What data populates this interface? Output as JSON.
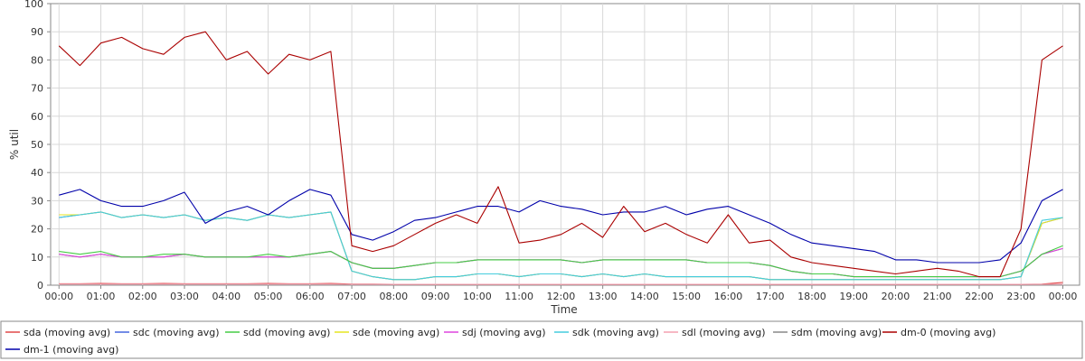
{
  "chart_data": {
    "type": "line",
    "xlabel": "Time",
    "ylabel": "% util",
    "ylim": [
      0,
      100
    ],
    "yticks": [
      0,
      10,
      20,
      30,
      40,
      50,
      60,
      70,
      80,
      90,
      100
    ],
    "xlim": [
      -0.2,
      24.4
    ],
    "xticks": [
      {
        "value": 0,
        "label": "00:00"
      },
      {
        "value": 1,
        "label": "01:00"
      },
      {
        "value": 2,
        "label": "02:00"
      },
      {
        "value": 3,
        "label": "03:00"
      },
      {
        "value": 4,
        "label": "04:00"
      },
      {
        "value": 5,
        "label": "05:00"
      },
      {
        "value": 6,
        "label": "06:00"
      },
      {
        "value": 7,
        "label": "07:00"
      },
      {
        "value": 8,
        "label": "08:00"
      },
      {
        "value": 9,
        "label": "09:00"
      },
      {
        "value": 10,
        "label": "10:00"
      },
      {
        "value": 11,
        "label": "11:00"
      },
      {
        "value": 12,
        "label": "12:00"
      },
      {
        "value": 13,
        "label": "13:00"
      },
      {
        "value": 14,
        "label": "14:00"
      },
      {
        "value": 15,
        "label": "15:00"
      },
      {
        "value": 16,
        "label": "16:00"
      },
      {
        "value": 17,
        "label": "17:00"
      },
      {
        "value": 18,
        "label": "18:00"
      },
      {
        "value": 19,
        "label": "19:00"
      },
      {
        "value": 20,
        "label": "20:00"
      },
      {
        "value": 21,
        "label": "21:00"
      },
      {
        "value": 22,
        "label": "22:00"
      },
      {
        "value": 23,
        "label": "23:00"
      },
      {
        "value": 24,
        "label": "00:00"
      }
    ],
    "grid": true,
    "legend_position": "bottom",
    "x": [
      0,
      0.5,
      1,
      1.5,
      2,
      2.5,
      3,
      3.5,
      4,
      4.5,
      5,
      5.5,
      6,
      6.5,
      7,
      7.5,
      8,
      8.5,
      9,
      9.5,
      10,
      10.5,
      11,
      11.5,
      12,
      12.5,
      13,
      13.5,
      14,
      14.5,
      15,
      15.5,
      16,
      16.5,
      17,
      17.5,
      18,
      18.5,
      19,
      19.5,
      20,
      20.5,
      21,
      21.5,
      22,
      22.5,
      23,
      23.5,
      24
    ],
    "series": [
      {
        "name": "sda (moving avg)",
        "color": "#e04848",
        "values": [
          0.5,
          0.5,
          0.6,
          0.5,
          0.5,
          0.6,
          0.5,
          0.5,
          0.5,
          0.5,
          0.6,
          0.5,
          0.5,
          0.6,
          0.4,
          0.4,
          0.3,
          0.3,
          0.3,
          0.3,
          0.3,
          0.3,
          0.3,
          0.3,
          0.3,
          0.3,
          0.3,
          0.3,
          0.3,
          0.3,
          0.3,
          0.3,
          0.3,
          0.3,
          0.3,
          0.3,
          0.3,
          0.3,
          0.3,
          0.3,
          0.3,
          0.3,
          0.3,
          0.3,
          0.3,
          0.3,
          0.3,
          0.4,
          1.0
        ]
      },
      {
        "name": "sdc (moving avg)",
        "color": "#4466dd",
        "values": [
          24,
          25,
          26,
          24,
          25,
          24,
          25,
          23,
          24,
          23,
          25,
          24,
          25,
          26,
          5,
          3,
          2,
          2,
          3,
          3,
          4,
          4,
          3,
          4,
          4,
          3,
          4,
          3,
          4,
          3,
          3,
          3,
          3,
          3,
          2,
          2,
          2,
          2,
          2,
          2,
          2,
          2,
          2,
          2,
          2,
          2,
          3,
          22,
          24
        ]
      },
      {
        "name": "sdd (moving avg)",
        "color": "#44cc44",
        "values": [
          12,
          11,
          12,
          10,
          10,
          11,
          11,
          10,
          10,
          10,
          11,
          10,
          11,
          12,
          8,
          6,
          6,
          7,
          8,
          8,
          9,
          9,
          9,
          9,
          9,
          8,
          9,
          9,
          9,
          9,
          9,
          8,
          8,
          8,
          7,
          5,
          4,
          4,
          3,
          3,
          3,
          3,
          3,
          3,
          3,
          3,
          5,
          11,
          14
        ]
      },
      {
        "name": "sde (moving avg)",
        "color": "#e6e620",
        "values": [
          25,
          25,
          26,
          24,
          25,
          24,
          25,
          23,
          24,
          23,
          25,
          24,
          25,
          26,
          5,
          3,
          2,
          2,
          3,
          3,
          4,
          4,
          3,
          4,
          4,
          3,
          4,
          3,
          4,
          3,
          3,
          3,
          3,
          3,
          2,
          2,
          2,
          2,
          2,
          2,
          2,
          2,
          2,
          2,
          2,
          2,
          3,
          22,
          24
        ]
      },
      {
        "name": "sdj (moving avg)",
        "color": "#dd44dd",
        "values": [
          11,
          10,
          11,
          10,
          10,
          10,
          11,
          10,
          10,
          10,
          10,
          10,
          11,
          12,
          8,
          6,
          6,
          7,
          8,
          8,
          9,
          9,
          9,
          9,
          9,
          8,
          9,
          9,
          9,
          9,
          9,
          8,
          8,
          8,
          7,
          5,
          4,
          4,
          3,
          3,
          3,
          3,
          3,
          3,
          3,
          3,
          5,
          11,
          13
        ]
      },
      {
        "name": "sdk (moving avg)",
        "color": "#44ccdd",
        "values": [
          24,
          25,
          26,
          24,
          25,
          24,
          25,
          23,
          24,
          23,
          25,
          24,
          25,
          26,
          5,
          3,
          2,
          2,
          3,
          3,
          4,
          4,
          3,
          4,
          4,
          3,
          4,
          3,
          4,
          3,
          3,
          3,
          3,
          3,
          2,
          2,
          2,
          2,
          2,
          2,
          2,
          2,
          2,
          2,
          2,
          2,
          3,
          23,
          24
        ]
      },
      {
        "name": "sdl (moving avg)",
        "color": "#f4a0b0",
        "values": [
          0.4,
          0.4,
          0.4,
          0.4,
          0.4,
          0.4,
          0.4,
          0.4,
          0.4,
          0.4,
          0.4,
          0.4,
          0.4,
          0.4,
          0.3,
          0.3,
          0.3,
          0.3,
          0.3,
          0.3,
          0.3,
          0.3,
          0.3,
          0.3,
          0.3,
          0.3,
          0.3,
          0.3,
          0.3,
          0.3,
          0.3,
          0.3,
          0.3,
          0.3,
          0.3,
          0.3,
          0.3,
          0.3,
          0.3,
          0.3,
          0.3,
          0.3,
          0.3,
          0.3,
          0.3,
          0.3,
          0.3,
          0.3,
          0.4
        ]
      },
      {
        "name": "sdm (moving avg)",
        "color": "#888888",
        "values": [
          11,
          10,
          11,
          10,
          10,
          10,
          11,
          10,
          10,
          10,
          10,
          10,
          11,
          12,
          8,
          6,
          6,
          7,
          8,
          8,
          9,
          9,
          9,
          9,
          9,
          8,
          9,
          9,
          9,
          9,
          9,
          8,
          8,
          8,
          7,
          5,
          4,
          4,
          3,
          3,
          3,
          3,
          3,
          3,
          3,
          3,
          5,
          11,
          13
        ]
      },
      {
        "name": "dm-0 (moving avg)",
        "color": "#aa0000",
        "values": [
          85,
          78,
          86,
          88,
          84,
          82,
          88,
          90,
          80,
          83,
          75,
          82,
          80,
          83,
          14,
          12,
          14,
          18,
          22,
          25,
          22,
          35,
          15,
          16,
          18,
          22,
          17,
          28,
          19,
          22,
          18,
          15,
          25,
          15,
          16,
          10,
          8,
          7,
          6,
          5,
          4,
          5,
          6,
          5,
          3,
          3,
          20,
          80,
          85
        ]
      },
      {
        "name": "dm-1 (moving avg)",
        "color": "#0000aa",
        "values": [
          32,
          34,
          30,
          28,
          28,
          30,
          33,
          22,
          26,
          28,
          25,
          30,
          34,
          32,
          18,
          16,
          19,
          23,
          24,
          26,
          28,
          28,
          26,
          30,
          28,
          27,
          25,
          26,
          26,
          28,
          25,
          27,
          28,
          25,
          22,
          18,
          15,
          14,
          13,
          12,
          9,
          9,
          8,
          8,
          8,
          9,
          15,
          30,
          34
        ]
      }
    ]
  }
}
